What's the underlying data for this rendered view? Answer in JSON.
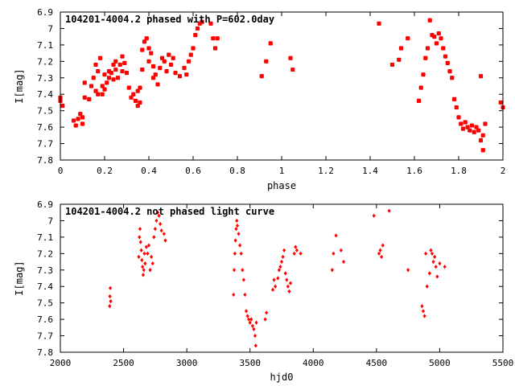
{
  "chart_data": [
    {
      "type": "scatter",
      "title": "104201-4004.2 phased with P=602.0day",
      "xlabel": "phase",
      "ylabel": "I[mag]",
      "xlim": [
        0,
        2
      ],
      "ylim": [
        7.8,
        6.9
      ],
      "y_inverted": true,
      "xticks": [
        0,
        0.2,
        0.4,
        0.6,
        0.8,
        1,
        1.2,
        1.4,
        1.6,
        1.8,
        2
      ],
      "xtick_labels": [
        "0",
        "0.2",
        "0.4",
        "0.6",
        "0.8",
        "1",
        "1.2",
        "1.4",
        "1.6",
        "1.8",
        "2"
      ],
      "yticks": [
        6.9,
        7,
        7.1,
        7.2,
        7.3,
        7.4,
        7.5,
        7.6,
        7.7,
        7.8
      ],
      "ytick_labels": [
        "6.9",
        "7",
        "7.1",
        "7.2",
        "7.3",
        "7.4",
        "7.5",
        "7.6",
        "7.7",
        "7.8"
      ],
      "grid": false,
      "marker": "filled-square",
      "marker_color": "#ff0000",
      "series": [
        {
          "points": [
            [
              0.0,
              7.42
            ],
            [
              0.0,
              7.44
            ],
            [
              0.01,
              7.47
            ],
            [
              0.06,
              7.56
            ],
            [
              0.07,
              7.59
            ],
            [
              0.08,
              7.55
            ],
            [
              0.09,
              7.52
            ],
            [
              0.1,
              7.58
            ],
            [
              0.1,
              7.54
            ],
            [
              0.11,
              7.42
            ],
            [
              0.11,
              7.33
            ],
            [
              0.13,
              7.43
            ],
            [
              0.14,
              7.35
            ],
            [
              0.15,
              7.3
            ],
            [
              0.16,
              7.38
            ],
            [
              0.16,
              7.22
            ],
            [
              0.17,
              7.4
            ],
            [
              0.17,
              7.26
            ],
            [
              0.18,
              7.18
            ],
            [
              0.19,
              7.35
            ],
            [
              0.19,
              7.4
            ],
            [
              0.2,
              7.37
            ],
            [
              0.2,
              7.28
            ],
            [
              0.21,
              7.33
            ],
            [
              0.22,
              7.3
            ],
            [
              0.22,
              7.26
            ],
            [
              0.23,
              7.27
            ],
            [
              0.24,
              7.22
            ],
            [
              0.24,
              7.31
            ],
            [
              0.25,
              7.25
            ],
            [
              0.25,
              7.2
            ],
            [
              0.26,
              7.3
            ],
            [
              0.27,
              7.22
            ],
            [
              0.28,
              7.26
            ],
            [
              0.28,
              7.17
            ],
            [
              0.29,
              7.21
            ],
            [
              0.3,
              7.27
            ],
            [
              0.31,
              7.36
            ],
            [
              0.32,
              7.42
            ],
            [
              0.33,
              7.4
            ],
            [
              0.34,
              7.44
            ],
            [
              0.35,
              7.47
            ],
            [
              0.35,
              7.38
            ],
            [
              0.36,
              7.45
            ],
            [
              0.36,
              7.36
            ],
            [
              0.37,
              7.25
            ],
            [
              0.37,
              7.13
            ],
            [
              0.38,
              7.08
            ],
            [
              0.39,
              7.06
            ],
            [
              0.4,
              7.12
            ],
            [
              0.4,
              7.2
            ],
            [
              0.41,
              7.15
            ],
            [
              0.42,
              7.23
            ],
            [
              0.42,
              7.3
            ],
            [
              0.43,
              7.28
            ],
            [
              0.44,
              7.34
            ],
            [
              0.45,
              7.24
            ],
            [
              0.46,
              7.18
            ],
            [
              0.47,
              7.2
            ],
            [
              0.48,
              7.26
            ],
            [
              0.49,
              7.16
            ],
            [
              0.5,
              7.22
            ],
            [
              0.51,
              7.18
            ],
            [
              0.52,
              7.27
            ],
            [
              0.54,
              7.29
            ],
            [
              0.56,
              7.24
            ],
            [
              0.57,
              7.28
            ],
            [
              0.58,
              7.2
            ],
            [
              0.59,
              7.16
            ],
            [
              0.6,
              7.12
            ],
            [
              0.61,
              7.04
            ],
            [
              0.62,
              7.0
            ],
            [
              0.63,
              6.97
            ],
            [
              0.64,
              6.96
            ],
            [
              0.68,
              6.97
            ],
            [
              0.69,
              7.06
            ],
            [
              0.7,
              7.12
            ],
            [
              0.71,
              7.06
            ],
            [
              0.91,
              7.29
            ],
            [
              0.93,
              7.2
            ],
            [
              0.95,
              7.09
            ],
            [
              1.04,
              7.18
            ],
            [
              1.05,
              7.25
            ],
            [
              1.44,
              6.97
            ],
            [
              1.5,
              7.22
            ],
            [
              1.53,
              7.19
            ],
            [
              1.54,
              7.12
            ],
            [
              1.57,
              7.06
            ],
            [
              1.62,
              7.44
            ],
            [
              1.63,
              7.36
            ],
            [
              1.64,
              7.28
            ],
            [
              1.65,
              7.18
            ],
            [
              1.66,
              7.12
            ],
            [
              1.67,
              6.95
            ],
            [
              1.68,
              7.04
            ],
            [
              1.69,
              7.05
            ],
            [
              1.7,
              7.09
            ],
            [
              1.71,
              7.03
            ],
            [
              1.72,
              7.06
            ],
            [
              1.73,
              7.12
            ],
            [
              1.74,
              7.17
            ],
            [
              1.75,
              7.21
            ],
            [
              1.76,
              7.26
            ],
            [
              1.77,
              7.3
            ],
            [
              1.78,
              7.43
            ],
            [
              1.79,
              7.48
            ],
            [
              1.8,
              7.54
            ],
            [
              1.81,
              7.58
            ],
            [
              1.82,
              7.61
            ],
            [
              1.83,
              7.57
            ],
            [
              1.84,
              7.6
            ],
            [
              1.85,
              7.62
            ],
            [
              1.86,
              7.59
            ],
            [
              1.87,
              7.63
            ],
            [
              1.88,
              7.6
            ],
            [
              1.89,
              7.62
            ],
            [
              1.9,
              7.68
            ],
            [
              1.9,
              7.29
            ],
            [
              1.91,
              7.74
            ],
            [
              1.91,
              7.65
            ],
            [
              1.92,
              7.58
            ],
            [
              1.99,
              7.45
            ],
            [
              2.0,
              7.48
            ]
          ]
        }
      ]
    },
    {
      "type": "scatter",
      "title": "104201-4004.2 not phased light curve",
      "xlabel": "hjd0",
      "ylabel": "I[mag]",
      "xlim": [
        2000,
        5500
      ],
      "ylim": [
        7.8,
        6.9
      ],
      "y_inverted": true,
      "xticks": [
        2000,
        2500,
        3000,
        3500,
        4000,
        4500,
        5000,
        5500
      ],
      "xtick_labels": [
        "2000",
        "2500",
        "3000",
        "3500",
        "4000",
        "4500",
        "5000",
        "5500"
      ],
      "yticks": [
        6.9,
        7,
        7.1,
        7.2,
        7.3,
        7.4,
        7.5,
        7.6,
        7.7,
        7.8
      ],
      "ytick_labels": [
        "6.9",
        "7",
        "7.1",
        "7.2",
        "7.3",
        "7.4",
        "7.5",
        "7.6",
        "7.7",
        "7.8"
      ],
      "grid": false,
      "marker": "filled-diamond",
      "marker_color": "#ff0000",
      "series": [
        {
          "points": [
            [
              2390,
              7.52
            ],
            [
              2392,
              7.46
            ],
            [
              2395,
              7.41
            ],
            [
              2398,
              7.49
            ],
            [
              2620,
              7.22
            ],
            [
              2625,
              7.1
            ],
            [
              2630,
              7.05
            ],
            [
              2635,
              7.13
            ],
            [
              2640,
              7.18
            ],
            [
              2645,
              7.24
            ],
            [
              2650,
              7.28
            ],
            [
              2655,
              7.33
            ],
            [
              2660,
              7.3
            ],
            [
              2665,
              7.2
            ],
            [
              2670,
              7.26
            ],
            [
              2680,
              7.16
            ],
            [
              2690,
              7.2
            ],
            [
              2700,
              7.15
            ],
            [
              2710,
              7.3
            ],
            [
              2720,
              7.22
            ],
            [
              2730,
              7.26
            ],
            [
              2740,
              7.1
            ],
            [
              2750,
              7.05
            ],
            [
              2760,
              7.0
            ],
            [
              2770,
              6.95
            ],
            [
              2780,
              6.97
            ],
            [
              2790,
              7.02
            ],
            [
              2800,
              7.06
            ],
            [
              2820,
              7.08
            ],
            [
              2830,
              7.12
            ],
            [
              3370,
              7.45
            ],
            [
              3375,
              7.3
            ],
            [
              3380,
              7.2
            ],
            [
              3385,
              7.12
            ],
            [
              3390,
              7.05
            ],
            [
              3395,
              7.0
            ],
            [
              3400,
              7.03
            ],
            [
              3410,
              7.08
            ],
            [
              3420,
              7.15
            ],
            [
              3430,
              7.2
            ],
            [
              3440,
              7.3
            ],
            [
              3450,
              7.36
            ],
            [
              3460,
              7.45
            ],
            [
              3470,
              7.55
            ],
            [
              3480,
              7.58
            ],
            [
              3490,
              7.6
            ],
            [
              3500,
              7.62
            ],
            [
              3510,
              7.6
            ],
            [
              3520,
              7.64
            ],
            [
              3530,
              7.66
            ],
            [
              3540,
              7.7
            ],
            [
              3545,
              7.76
            ],
            [
              3550,
              7.62
            ],
            [
              3620,
              7.6
            ],
            [
              3630,
              7.56
            ],
            [
              3680,
              7.42
            ],
            [
              3690,
              7.36
            ],
            [
              3700,
              7.4
            ],
            [
              3720,
              7.35
            ],
            [
              3730,
              7.3
            ],
            [
              3740,
              7.28
            ],
            [
              3750,
              7.25
            ],
            [
              3760,
              7.22
            ],
            [
              3770,
              7.18
            ],
            [
              3780,
              7.32
            ],
            [
              3790,
              7.36
            ],
            [
              3800,
              7.4
            ],
            [
              3810,
              7.43
            ],
            [
              3820,
              7.38
            ],
            [
              3850,
              7.2
            ],
            [
              3860,
              7.16
            ],
            [
              3870,
              7.18
            ],
            [
              3900,
              7.2
            ],
            [
              4150,
              7.3
            ],
            [
              4160,
              7.2
            ],
            [
              4180,
              7.09
            ],
            [
              4220,
              7.18
            ],
            [
              4240,
              7.25
            ],
            [
              4480,
              6.97
            ],
            [
              4520,
              7.2
            ],
            [
              4530,
              7.18
            ],
            [
              4540,
              7.22
            ],
            [
              4550,
              7.15
            ],
            [
              4600,
              6.94
            ],
            [
              4750,
              7.3
            ],
            [
              4860,
              7.52
            ],
            [
              4870,
              7.55
            ],
            [
              4880,
              7.58
            ],
            [
              4890,
              7.2
            ],
            [
              4900,
              7.4
            ],
            [
              4920,
              7.32
            ],
            [
              4930,
              7.18
            ],
            [
              4940,
              7.2
            ],
            [
              4950,
              7.25
            ],
            [
              4960,
              7.22
            ],
            [
              4970,
              7.28
            ],
            [
              4980,
              7.34
            ],
            [
              5000,
              7.26
            ],
            [
              5040,
              7.28
            ]
          ]
        }
      ]
    }
  ]
}
